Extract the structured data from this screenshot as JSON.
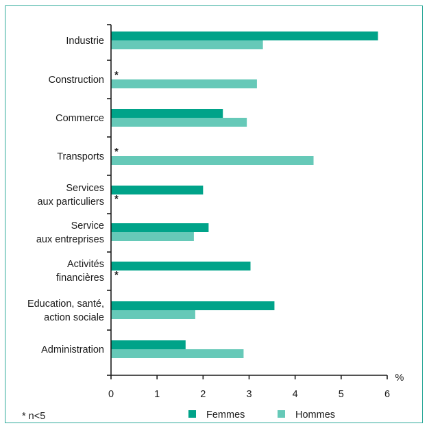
{
  "chart_data": {
    "type": "bar",
    "orientation": "horizontal",
    "categories": [
      [
        "Industrie"
      ],
      [
        "Construction"
      ],
      [
        "Commerce"
      ],
      [
        "Transports"
      ],
      [
        "Services",
        "aux particuliers"
      ],
      [
        "Service",
        "aux entreprises"
      ],
      [
        "Activités",
        "financières"
      ],
      [
        "Education, santé,",
        "action sociale"
      ],
      [
        "Administration"
      ]
    ],
    "series": [
      {
        "name": "Femmes",
        "color": "#00a389",
        "values": [
          5.8,
          null,
          2.43,
          null,
          2.0,
          2.12,
          3.03,
          3.55,
          1.62
        ]
      },
      {
        "name": "Hommes",
        "color": "#66c9b8",
        "values": [
          3.3,
          3.17,
          2.95,
          4.4,
          null,
          1.8,
          null,
          1.83,
          2.88
        ]
      }
    ],
    "xlim": [
      0,
      6
    ],
    "xticks": [
      "0",
      "1",
      "2",
      "3",
      "4",
      "5",
      "6"
    ],
    "xunit": "%",
    "missing_marker": "*",
    "footnote": "* n<5"
  }
}
